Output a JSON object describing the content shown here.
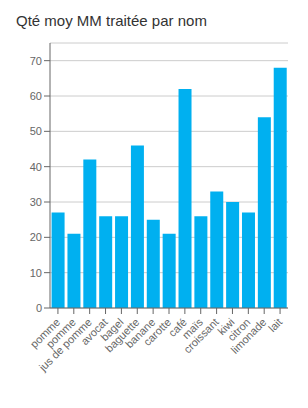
{
  "chart_data": {
    "type": "bar",
    "title": "Qté moy MM traitée par nom",
    "categories": [
      "pomme",
      "pomme",
      "jus de pomme",
      "avocat",
      "bagel",
      "baguette",
      "banane",
      "carotte",
      "café",
      "maïs",
      "croissant",
      "kiwi",
      "citron",
      "limonade",
      "lait"
    ],
    "values": [
      27,
      21,
      42,
      26,
      26,
      46,
      25,
      21,
      62,
      26,
      33,
      30,
      27,
      54,
      68
    ],
    "color": "#00B0F0",
    "ylim": [
      0,
      75
    ],
    "yticks": [
      0,
      10,
      20,
      30,
      40,
      50,
      60,
      70
    ],
    "grid": true
  }
}
